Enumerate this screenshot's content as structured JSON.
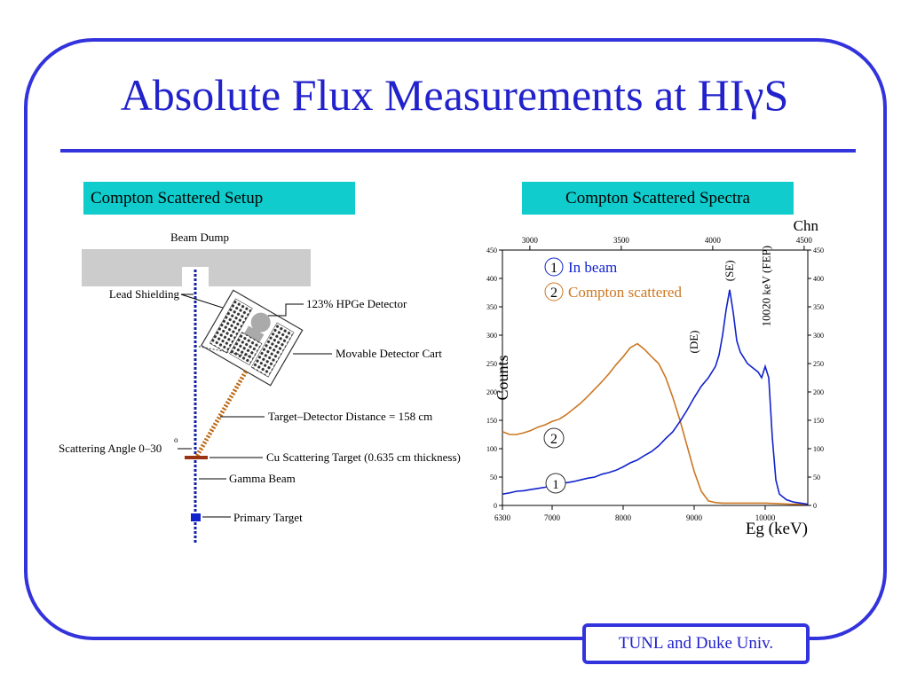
{
  "title": "Absolute Flux Measurements at HIγS",
  "footer": "TUNL and Duke Univ.",
  "colors": {
    "frame": "#3333dd",
    "title": "#2222cc",
    "header_bg": "#11cccc",
    "series_in_beam": "#1122cc",
    "series_compton": "#cc7722"
  },
  "setup": {
    "header": "Compton Scattered Setup",
    "labels": {
      "beam_dump": "Beam Dump",
      "lead_shielding": "Lead Shielding",
      "detector": "123% HPGe Detector",
      "cart": "Movable Detector Cart",
      "distance": "Target–Detector Distance = 158 cm",
      "angle": "Scattering Angle 0–30",
      "angle_unit": "o",
      "cu_target": "Cu Scattering Target (0.635 cm thickness)",
      "gamma_beam": "Gamma Beam",
      "primary_target": "Primary Target"
    }
  },
  "spectra": {
    "header": "Compton Scattered Spectra"
  },
  "chart_data": {
    "type": "line",
    "title": "",
    "xlabel": "Eg (keV)",
    "ylabel": "Counts",
    "xlim": [
      6300,
      10600
    ],
    "ylim": [
      0,
      450
    ],
    "x_ticks": [
      6300,
      7000,
      8000,
      9000,
      10000
    ],
    "x_tick_labels": [
      "6300",
      "7000",
      "8000",
      "9000",
      "10000"
    ],
    "y_ticks": [
      0,
      50,
      100,
      150,
      200,
      250,
      300,
      350,
      400,
      450
    ],
    "top_axis": {
      "label": "Chn",
      "lim": [
        2850,
        4520
      ],
      "ticks": [
        3000,
        3500,
        4000,
        4500
      ]
    },
    "grid": false,
    "legend_position": "top-left",
    "annotations": [
      {
        "text": "(SE)",
        "x": 9500,
        "y": 395
      },
      {
        "text": "(DE)",
        "x": 9000,
        "y": 268
      },
      {
        "text": "10020 keV (FEP)",
        "x": 10020,
        "y": 315
      }
    ],
    "series": [
      {
        "name": "In beam",
        "marker": "1",
        "x": [
          6300,
          6400,
          6500,
          6600,
          6700,
          6800,
          6900,
          7000,
          7100,
          7200,
          7300,
          7400,
          7500,
          7600,
          7700,
          7800,
          7900,
          8000,
          8100,
          8200,
          8300,
          8400,
          8500,
          8600,
          8700,
          8800,
          8900,
          9000,
          9100,
          9200,
          9300,
          9350,
          9400,
          9450,
          9500,
          9550,
          9600,
          9650,
          9700,
          9750,
          9800,
          9850,
          9900,
          9950,
          10000,
          10050,
          10100,
          10150,
          10200,
          10300,
          10400,
          10500,
          10600
        ],
        "y": [
          20,
          22,
          25,
          26,
          28,
          30,
          32,
          35,
          37,
          40,
          42,
          45,
          48,
          50,
          55,
          58,
          62,
          68,
          75,
          80,
          88,
          95,
          105,
          118,
          130,
          148,
          168,
          190,
          210,
          225,
          245,
          265,
          300,
          345,
          380,
          340,
          290,
          270,
          260,
          250,
          245,
          240,
          235,
          225,
          245,
          225,
          120,
          45,
          20,
          10,
          6,
          4,
          2
        ]
      },
      {
        "name": "Compton scattered",
        "marker": "2",
        "x": [
          6300,
          6400,
          6500,
          6600,
          6700,
          6800,
          6900,
          7000,
          7100,
          7200,
          7300,
          7400,
          7500,
          7600,
          7700,
          7800,
          7900,
          8000,
          8100,
          8200,
          8300,
          8400,
          8500,
          8600,
          8700,
          8800,
          8900,
          9000,
          9100,
          9200,
          9300,
          9400,
          9500,
          9600,
          9700,
          9800,
          9900,
          10000,
          10200,
          10400,
          10600
        ],
        "y": [
          130,
          125,
          125,
          128,
          132,
          138,
          142,
          148,
          152,
          160,
          170,
          180,
          192,
          205,
          218,
          232,
          248,
          262,
          278,
          285,
          275,
          262,
          250,
          225,
          190,
          150,
          105,
          60,
          25,
          8,
          5,
          4,
          4,
          4,
          4,
          4,
          4,
          4,
          3,
          2,
          2
        ]
      }
    ]
  }
}
